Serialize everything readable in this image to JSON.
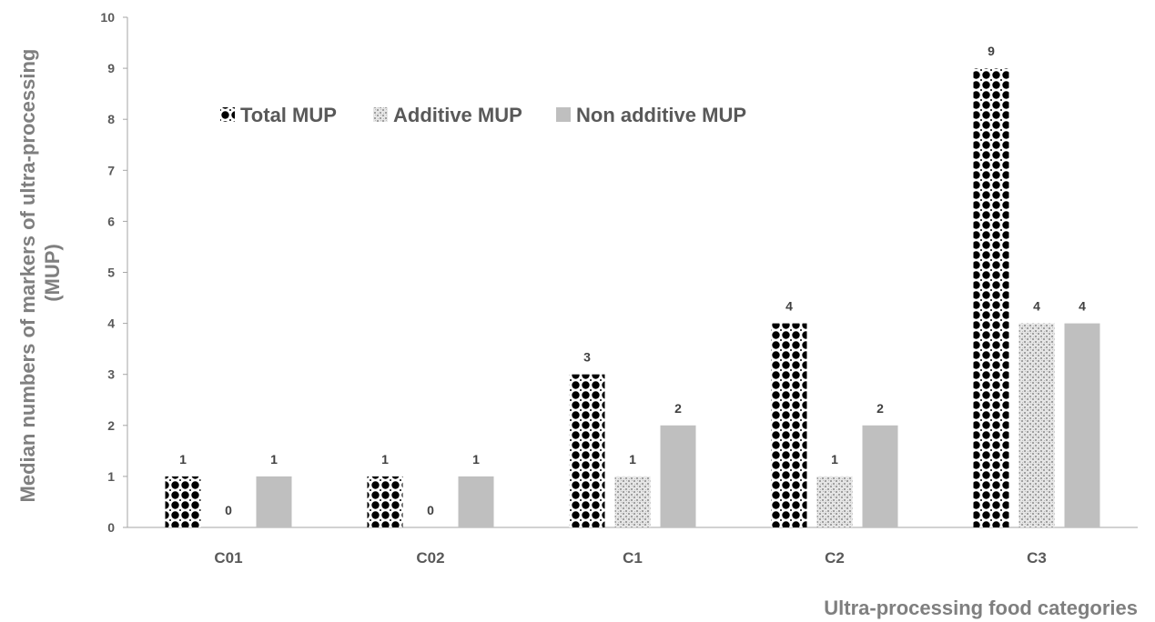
{
  "chart_data": {
    "type": "bar",
    "categories": [
      "C01",
      "C02",
      "C1",
      "C2",
      "C3"
    ],
    "series": [
      {
        "name": "Total MUP",
        "values": [
          1,
          1,
          3,
          4,
          9
        ],
        "pattern": "black-dots"
      },
      {
        "name": "Additive MUP",
        "values": [
          0,
          0,
          1,
          1,
          4
        ],
        "pattern": "gray-speckle"
      },
      {
        "name": "Non additive MUP",
        "values": [
          1,
          1,
          2,
          2,
          4
        ],
        "pattern": "solid-gray"
      }
    ],
    "title": "",
    "xlabel": "Ultra-processing food categories",
    "ylabel_lines": [
      "Median numbers of  markers of ultra-processing",
      "(MUP)"
    ],
    "ylim": [
      0,
      10
    ],
    "yticks": [
      "0",
      "1",
      "2",
      "3",
      "4",
      "5",
      "6",
      "7",
      "8",
      "9",
      "10"
    ],
    "grid": false,
    "legend_position": "top-left",
    "colors": {
      "solid": "#bfbfbf",
      "dots": "#000000",
      "speckle": "#a6a6a6",
      "axis": "#7f7f7f"
    }
  }
}
